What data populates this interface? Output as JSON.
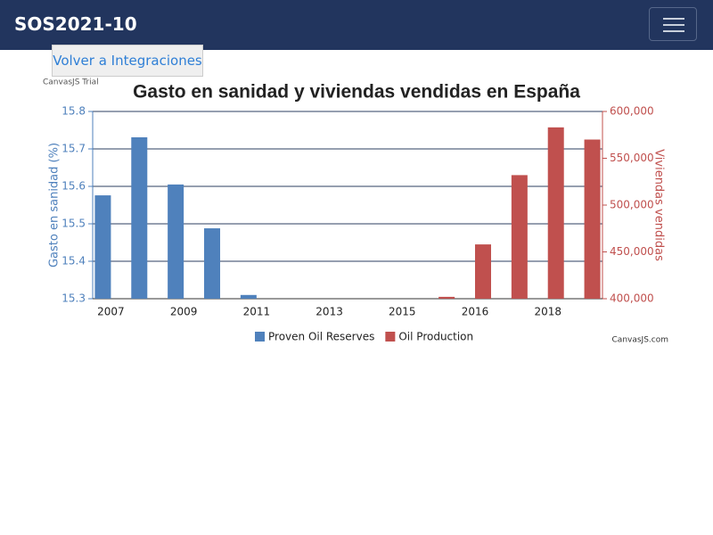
{
  "navbar": {
    "brand": "SOS2021-10"
  },
  "button": {
    "label": "Volver a Integraciones"
  },
  "chart_data": {
    "type": "bar",
    "title": "Gasto en sanidad y viviendas vendidas en España",
    "watermark": "CanvasJS Trial",
    "credit": "CanvasJS.com",
    "y_label": "Gasto en sanidad (%)",
    "y2_label": "Viviendas vendidas",
    "categories": [
      "2007",
      null,
      "2009",
      null,
      "2011",
      null,
      "2013",
      null,
      "2015",
      null,
      "2016",
      null,
      "2018",
      null
    ],
    "series": [
      {
        "name": "Proven Oil Reserves",
        "color": "#4f81bc",
        "values": [
          15.576,
          15.731,
          15.605,
          15.488,
          15.31,
          null,
          null,
          null,
          null,
          null,
          null,
          null,
          null,
          null
        ]
      },
      {
        "name": "Oil Production",
        "color": "#c0504e",
        "axis": "y2",
        "values": [
          null,
          null,
          null,
          null,
          null,
          null,
          null,
          null,
          null,
          402000,
          458000,
          532000,
          583000,
          570000
        ]
      }
    ],
    "ylim": [
      15.3,
      15.8
    ],
    "yticks": [
      15.3,
      15.4,
      15.5,
      15.6,
      15.7,
      15.8
    ],
    "y2lim": [
      400000,
      600000
    ],
    "y2ticks": [
      {
        "value": 400000,
        "label": "400,000"
      },
      {
        "value": 450000,
        "label": "450,000"
      },
      {
        "value": 500000,
        "label": "500,000"
      },
      {
        "value": 550000,
        "label": "550,000"
      },
      {
        "value": 600000,
        "label": "600,000"
      }
    ],
    "grid": true,
    "legend": "bottom"
  }
}
